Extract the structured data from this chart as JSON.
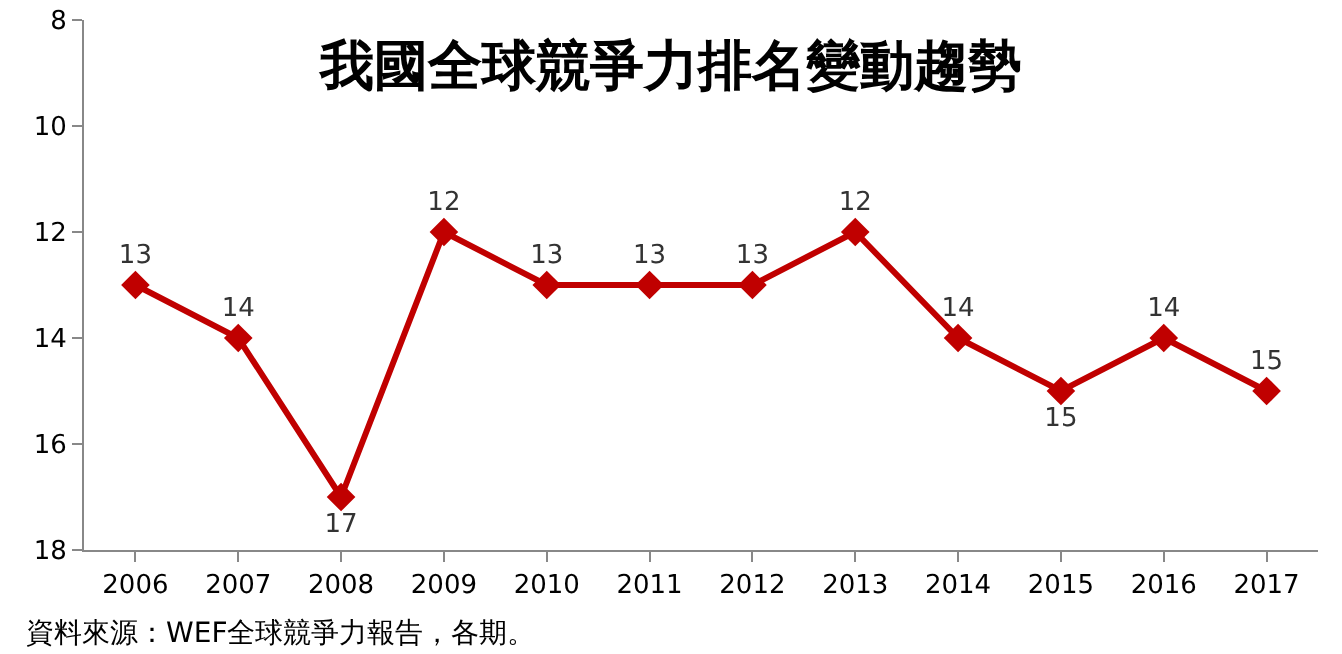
{
  "chart_data": {
    "type": "line",
    "title": "我國全球競爭力排名變動趨勢",
    "categories": [
      "2006",
      "2007",
      "2008",
      "2009",
      "2010",
      "2011",
      "2012",
      "2013",
      "2014",
      "2015",
      "2016",
      "2017"
    ],
    "series": [
      {
        "color": "#c00000",
        "values": [
          13,
          14,
          17,
          12,
          13,
          13,
          13,
          12,
          14,
          15,
          14,
          15
        ]
      }
    ],
    "ylim": [
      18,
      8
    ],
    "yticks": [
      8,
      10,
      12,
      14,
      16,
      18
    ],
    "data_labels": true,
    "marker": "diamond",
    "line_style": "solid",
    "annotations": [
      "資料來源：WEF全球競爭力報告，各期。"
    ]
  }
}
